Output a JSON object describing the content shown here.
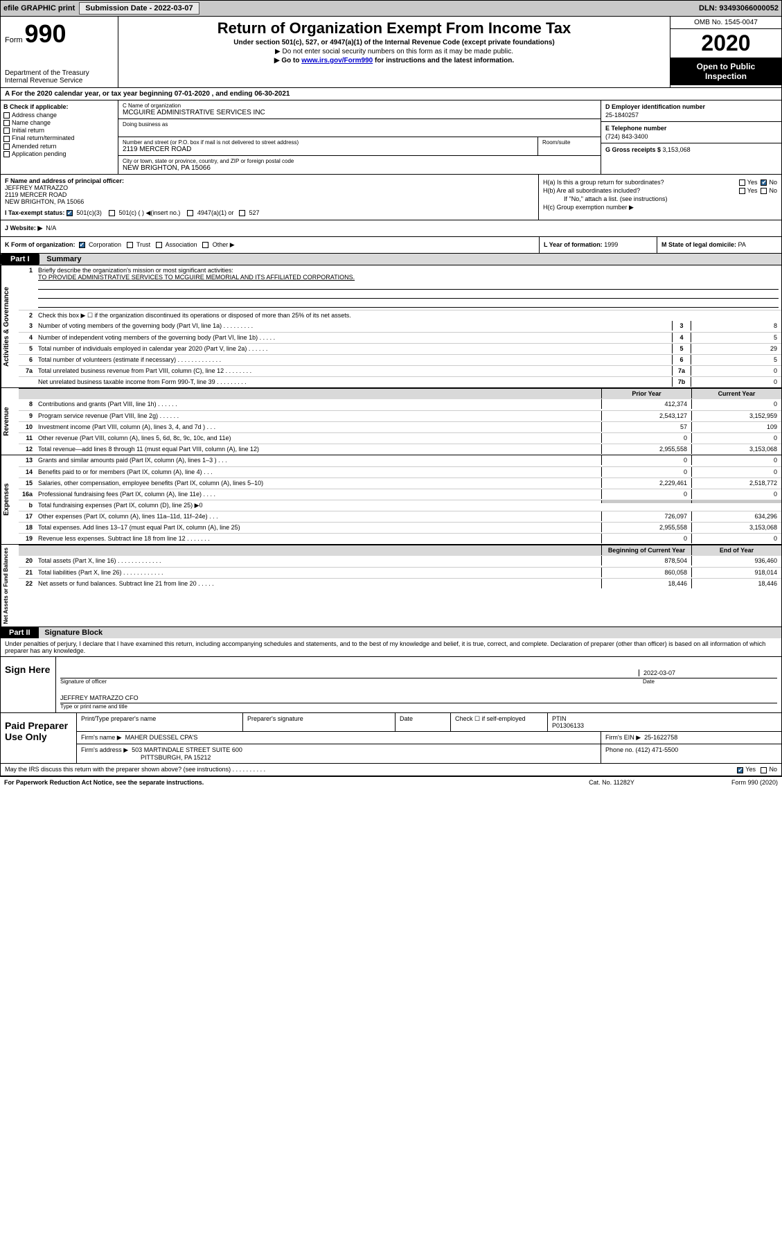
{
  "topbar": {
    "efile": "efile GRAPHIC print",
    "subdate_label": "Submission Date - ",
    "subdate": "2022-03-07",
    "dln_label": "DLN: ",
    "dln": "93493066000052"
  },
  "header": {
    "form_word": "Form",
    "form_num": "990",
    "dept1": "Department of the Treasury",
    "dept2": "Internal Revenue Service",
    "title": "Return of Organization Exempt From Income Tax",
    "sub1": "Under section 501(c), 527, or 4947(a)(1) of the Internal Revenue Code (except private foundations)",
    "sub2": "▶ Do not enter social security numbers on this form as it may be made public.",
    "sub3_a": "▶ Go to ",
    "sub3_link": "www.irs.gov/Form990",
    "sub3_b": " for instructions and the latest information.",
    "omb": "OMB No. 1545-0047",
    "year": "2020",
    "open1": "Open to Public",
    "open2": "Inspection"
  },
  "a_row": "A For the 2020 calendar year, or tax year beginning 07-01-2020    , and ending 06-30-2021",
  "b": {
    "head": "B Check if applicable:",
    "items": [
      "Address change",
      "Name change",
      "Initial return",
      "Final return/terminated",
      "Amended return",
      "Application pending"
    ]
  },
  "c": {
    "name_label": "C Name of organization",
    "name": "MCGUIRE ADMINISTRATIVE SERVICES INC",
    "dba_label": "Doing business as",
    "addr_label": "Number and street (or P.O. box if mail is not delivered to street address)",
    "room_label": "Room/suite",
    "addr": "2119 MERCER ROAD",
    "city_label": "City or town, state or province, country, and ZIP or foreign postal code",
    "city": "NEW BRIGHTON, PA  15066"
  },
  "d": {
    "head": "D Employer identification number",
    "val": "25-1840257"
  },
  "e": {
    "head": "E Telephone number",
    "val": "(724) 843-3400"
  },
  "g": {
    "head": "G Gross receipts $ ",
    "val": "3,153,068"
  },
  "f": {
    "head": "F  Name and address of principal officer:",
    "name": "JEFFREY MATRAZZO",
    "addr1": "2119 MERCER ROAD",
    "addr2": "NEW BRIGHTON, PA  15066"
  },
  "h": {
    "a_q": "H(a)  Is this a group return for subordinates?",
    "b_q": "H(b)  Are all subordinates included?",
    "b_note": "If \"No,\" attach a list. (see instructions)",
    "c_q": "H(c)  Group exemption number ▶",
    "yes": "Yes",
    "no": "No"
  },
  "i": {
    "label": "I  Tax-exempt status:",
    "o1": "501(c)(3)",
    "o2": "501(c) (   ) ◀(insert no.)",
    "o3": "4947(a)(1) or",
    "o4": "527"
  },
  "j": {
    "label": "J  Website: ▶",
    "val": "N/A"
  },
  "k": {
    "label": "K Form of organization:",
    "o1": "Corporation",
    "o2": "Trust",
    "o3": "Association",
    "o4": "Other ▶"
  },
  "l": {
    "label": "L Year of formation: ",
    "val": "1999"
  },
  "m": {
    "label": "M State of legal domicile: ",
    "val": "PA"
  },
  "part1": {
    "label": "Part I",
    "title": "Summary"
  },
  "part2": {
    "label": "Part II",
    "title": "Signature Block"
  },
  "q1": {
    "num": "1",
    "text": "Briefly describe the organization's mission or most significant activities:",
    "answer": "TO PROVIDE ADMINISTRATIVE SERVICES TO MCGUIRE MEMORIAL AND ITS AFFILIATED CORPORATIONS."
  },
  "q2": {
    "num": "2",
    "text": "Check this box ▶ ☐  if the organization discontinued its operations or disposed of more than 25% of its net assets."
  },
  "rows_ag": [
    {
      "num": "3",
      "desc": "Number of voting members of the governing body (Part VI, line 1a)  .   .   .   .   .   .   .   .   .",
      "key": "3",
      "val": "8"
    },
    {
      "num": "4",
      "desc": "Number of independent voting members of the governing body (Part VI, line 1b)   .   .   .   .   .",
      "key": "4",
      "val": "5"
    },
    {
      "num": "5",
      "desc": "Total number of individuals employed in calendar year 2020 (Part V, line 2a)   .   .   .   .   .   .",
      "key": "5",
      "val": "29"
    },
    {
      "num": "6",
      "desc": "Total number of volunteers (estimate if necessary)   .   .   .   .   .   .   .   .   .   .   .   .   .",
      "key": "6",
      "val": "5"
    },
    {
      "num": "7a",
      "desc": "Total unrelated business revenue from Part VIII, column (C), line 12   .   .   .   .   .   .   .   .",
      "key": "7a",
      "val": "0"
    },
    {
      "num": "",
      "desc": "Net unrelated business taxable income from Form 990-T, line 39   .   .   .   .   .   .   .   .   .",
      "key": "7b",
      "val": "0"
    }
  ],
  "rev_head": {
    "prior": "Prior Year",
    "curr": "Current Year"
  },
  "net_head": {
    "prior": "Beginning of Current Year",
    "curr": "End of Year"
  },
  "rows_rev": [
    {
      "num": "8",
      "desc": "Contributions and grants (Part VIII, line 1h)   .   .   .   .   .   .",
      "prior": "412,374",
      "curr": "0"
    },
    {
      "num": "9",
      "desc": "Program service revenue (Part VIII, line 2g)   .   .   .   .   .   .",
      "prior": "2,543,127",
      "curr": "3,152,959"
    },
    {
      "num": "10",
      "desc": "Investment income (Part VIII, column (A), lines 3, 4, and 7d )   .   .   .",
      "prior": "57",
      "curr": "109"
    },
    {
      "num": "11",
      "desc": "Other revenue (Part VIII, column (A), lines 5, 6d, 8c, 9c, 10c, and 11e)",
      "prior": "0",
      "curr": "0"
    },
    {
      "num": "12",
      "desc": "Total revenue—add lines 8 through 11 (must equal Part VIII, column (A), line 12)",
      "prior": "2,955,558",
      "curr": "3,153,068"
    }
  ],
  "rows_exp": [
    {
      "num": "13",
      "desc": "Grants and similar amounts paid (Part IX, column (A), lines 1–3 )   .   .   .",
      "prior": "0",
      "curr": "0"
    },
    {
      "num": "14",
      "desc": "Benefits paid to or for members (Part IX, column (A), line 4)   .   .   .",
      "prior": "0",
      "curr": "0"
    },
    {
      "num": "15",
      "desc": "Salaries, other compensation, employee benefits (Part IX, column (A), lines 5–10)",
      "prior": "2,229,461",
      "curr": "2,518,772"
    },
    {
      "num": "16a",
      "desc": "Professional fundraising fees (Part IX, column (A), line 11e)   .   .   .   .",
      "prior": "0",
      "curr": "0"
    },
    {
      "num": "b",
      "desc": "Total fundraising expenses (Part IX, column (D), line 25) ▶0",
      "prior": "",
      "curr": "",
      "grey": true
    },
    {
      "num": "17",
      "desc": "Other expenses (Part IX, column (A), lines 11a–11d, 11f–24e)   .   .   .",
      "prior": "726,097",
      "curr": "634,296"
    },
    {
      "num": "18",
      "desc": "Total expenses. Add lines 13–17 (must equal Part IX, column (A), line 25)",
      "prior": "2,955,558",
      "curr": "3,153,068"
    },
    {
      "num": "19",
      "desc": "Revenue less expenses. Subtract line 18 from line 12   .   .   .   .   .   .   .",
      "prior": "0",
      "curr": "0"
    }
  ],
  "rows_net": [
    {
      "num": "20",
      "desc": "Total assets (Part X, line 16)   .   .   .   .   .   .   .   .   .   .   .   .   .",
      "prior": "878,504",
      "curr": "936,460"
    },
    {
      "num": "21",
      "desc": "Total liabilities (Part X, line 26)   .   .   .   .   .   .   .   .   .   .   .   .",
      "prior": "860,058",
      "curr": "918,014"
    },
    {
      "num": "22",
      "desc": "Net assets or fund balances. Subtract line 21 from line 20   .   .   .   .   .",
      "prior": "18,446",
      "curr": "18,446"
    }
  ],
  "vlabels": {
    "gov": "Activities & Governance",
    "rev": "Revenue",
    "exp": "Expenses",
    "net": "Net Assets or Fund Balances"
  },
  "decl": "Under penalties of perjury, I declare that I have examined this return, including accompanying schedules and statements, and to the best of my knowledge and belief, it is true, correct, and complete. Declaration of preparer (other than officer) is based on all information of which preparer has any knowledge.",
  "sign": {
    "label": "Sign Here",
    "sig_of": "Signature of officer",
    "date_label": "Date",
    "date": "2022-03-07",
    "name": "JEFFREY MATRAZZO CFO",
    "type_label": "Type or print name and title"
  },
  "prep": {
    "label": "Paid Preparer Use Only",
    "c1h": "Print/Type preparer's name",
    "c2h": "Preparer's signature",
    "c3h": "Date",
    "c4h_a": "Check ☐ if self-employed",
    "c5h": "PTIN",
    "ptin": "P01306133",
    "firm_label": "Firm's name    ▶",
    "firm": "MAHER DUESSEL CPA'S",
    "ein_label": "Firm's EIN ▶",
    "ein": "25-1622758",
    "addr_label": "Firm's address ▶",
    "addr1": "503 MARTINDALE STREET SUITE 600",
    "addr2": "PITTSBURGH, PA  15212",
    "phone_label": "Phone no. ",
    "phone": "(412) 471-5500"
  },
  "discuss": {
    "q": "May the IRS discuss this return with the preparer shown above? (see instructions)   .   .   .   .   .   .   .   .   .   .",
    "yes": "Yes",
    "no": "No"
  },
  "footer": {
    "left": "For Paperwork Reduction Act Notice, see the separate instructions.",
    "center": "Cat. No. 11282Y",
    "right": "Form 990 (2020)"
  }
}
